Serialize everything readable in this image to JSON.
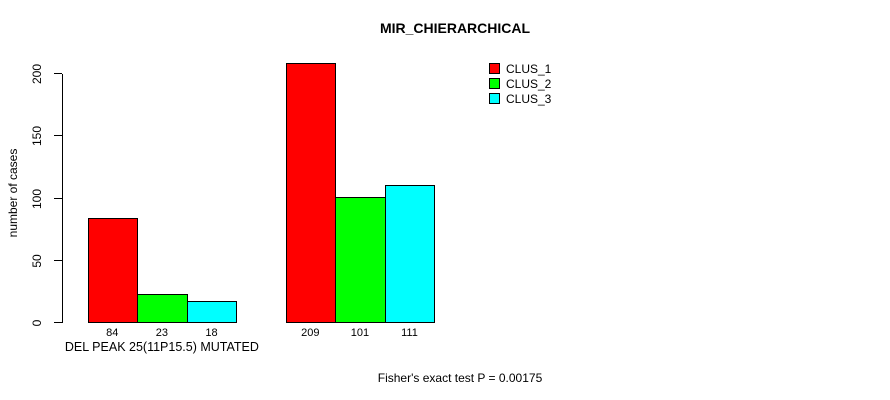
{
  "chart_data": {
    "type": "bar",
    "title": "MIR_CHIERARCHICAL",
    "ylabel": "number of cases",
    "xlabel": "",
    "categories": [
      "DEL PEAK 25(11P15.5) MUTATED",
      ""
    ],
    "series": [
      {
        "name": "CLUS_1",
        "color": "#ff0000",
        "values": [
          84,
          209
        ]
      },
      {
        "name": "CLUS_2",
        "color": "#00ff00",
        "values": [
          23,
          101
        ]
      },
      {
        "name": "CLUS_3",
        "color": "#00ffff",
        "values": [
          18,
          111
        ]
      }
    ],
    "bar_value_labels": [
      [
        84,
        23,
        18
      ],
      [
        209,
        101,
        111
      ]
    ],
    "yticks": [
      0,
      50,
      100,
      150,
      200
    ],
    "ylim": [
      0,
      200
    ],
    "grid": false,
    "legend_position": "top-right",
    "annotation": "Fisher's exact test P = 0.00175",
    "colors": {
      "background": "#ffffff",
      "text": "#000000",
      "axis": "#000000",
      "bar_border": "#000000"
    }
  }
}
